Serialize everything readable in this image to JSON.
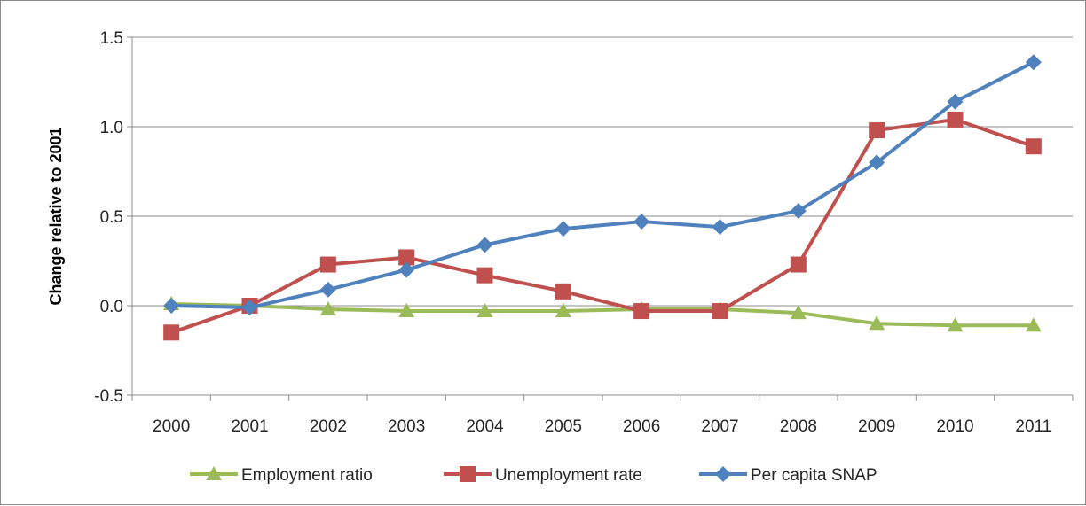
{
  "chart_data": {
    "type": "line",
    "title": "",
    "xlabel": "",
    "ylabel": "Change relative to 2001",
    "categories": [
      "2000",
      "2001",
      "2002",
      "2003",
      "2004",
      "2005",
      "2006",
      "2007",
      "2008",
      "2009",
      "2010",
      "2011"
    ],
    "ylim": [
      -0.5,
      1.5
    ],
    "yticks": [
      "-0.5",
      "0.0",
      "0.5",
      "1.0",
      "1.5"
    ],
    "grid": "horizontal",
    "legend_position": "bottom",
    "series": [
      {
        "name": "Employment ratio",
        "color": "#9bbb59",
        "marker": "triangle",
        "values": [
          0.01,
          0.0,
          -0.02,
          -0.03,
          -0.03,
          -0.03,
          -0.02,
          -0.02,
          -0.04,
          -0.1,
          -0.11,
          -0.11
        ]
      },
      {
        "name": "Unemployment rate",
        "color": "#c0504d",
        "marker": "square",
        "values": [
          -0.15,
          0.0,
          0.23,
          0.27,
          0.17,
          0.08,
          -0.03,
          -0.03,
          0.23,
          0.98,
          1.04,
          0.89
        ]
      },
      {
        "name": "Per capita SNAP",
        "color": "#4f81bd",
        "marker": "diamond",
        "values": [
          0.0,
          -0.01,
          0.09,
          0.2,
          0.34,
          0.43,
          0.47,
          0.44,
          0.53,
          0.8,
          1.14,
          1.36
        ]
      }
    ]
  }
}
